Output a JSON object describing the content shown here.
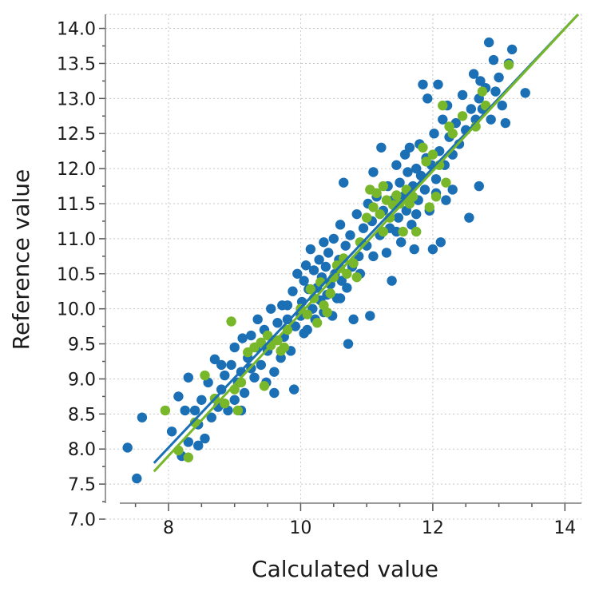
{
  "chart_data": {
    "type": "scatter",
    "title": "",
    "xlabel": "Calculated value",
    "ylabel": "Reference value",
    "xlim": [
      6.9,
      14.25
    ],
    "ylim": [
      7.0,
      14.2
    ],
    "x_ticks": [
      8,
      10,
      12,
      14
    ],
    "y_ticks": [
      7.0,
      7.5,
      8.0,
      8.5,
      9.0,
      9.5,
      10.0,
      10.5,
      11.0,
      11.5,
      12.0,
      12.5,
      13.0,
      13.5,
      14.0
    ],
    "x_ticklabels": [
      "8",
      "10",
      "12",
      "14"
    ],
    "y_ticklabels": [
      "7.0",
      "7.5",
      "8.0",
      "8.5",
      "9.0",
      "9.5",
      "10.0",
      "10.5",
      "11.0",
      "11.5",
      "12.0",
      "12.5",
      "13.0",
      "13.5",
      "14.0"
    ],
    "grid": true,
    "series": [
      {
        "color": "#1a6fb5",
        "points": [
          [
            7.38,
            8.02
          ],
          [
            7.52,
            7.58
          ],
          [
            7.6,
            8.45
          ],
          [
            8.05,
            8.25
          ],
          [
            8.15,
            8.75
          ],
          [
            8.2,
            7.9
          ],
          [
            8.3,
            8.1
          ],
          [
            8.3,
            9.02
          ],
          [
            8.4,
            8.55
          ],
          [
            8.45,
            8.35
          ],
          [
            8.5,
            8.7
          ],
          [
            8.55,
            8.15
          ],
          [
            8.6,
            8.95
          ],
          [
            8.65,
            8.45
          ],
          [
            8.7,
            9.28
          ],
          [
            8.75,
            8.6
          ],
          [
            8.8,
            8.85
          ],
          [
            8.85,
            9.05
          ],
          [
            8.9,
            8.55
          ],
          [
            8.95,
            9.2
          ],
          [
            9.0,
            8.7
          ],
          [
            9.0,
            9.45
          ],
          [
            9.05,
            8.95
          ],
          [
            9.1,
            9.1
          ],
          [
            9.12,
            9.58
          ],
          [
            9.15,
            8.8
          ],
          [
            9.2,
            9.3
          ],
          [
            9.25,
            9.62
          ],
          [
            9.3,
            9.02
          ],
          [
            9.32,
            9.45
          ],
          [
            9.35,
            9.85
          ],
          [
            9.4,
            9.2
          ],
          [
            9.45,
            9.7
          ],
          [
            9.48,
            8.95
          ],
          [
            9.5,
            9.4
          ],
          [
            9.55,
            10.0
          ],
          [
            9.58,
            9.55
          ],
          [
            9.6,
            9.1
          ],
          [
            9.65,
            9.8
          ],
          [
            9.7,
            9.3
          ],
          [
            9.72,
            10.05
          ],
          [
            9.75,
            9.6
          ],
          [
            9.8,
            9.85
          ],
          [
            9.85,
            9.4
          ],
          [
            9.88,
            10.25
          ],
          [
            9.9,
            8.85
          ],
          [
            9.92,
            9.75
          ],
          [
            9.95,
            10.5
          ],
          [
            10.0,
            9.9
          ],
          [
            10.02,
            10.1
          ],
          [
            10.05,
            10.4
          ],
          [
            10.08,
            10.62
          ],
          [
            10.1,
            9.7
          ],
          [
            10.12,
            10.28
          ],
          [
            10.15,
            10.85
          ],
          [
            10.18,
            10.0
          ],
          [
            10.2,
            10.55
          ],
          [
            10.22,
            9.85
          ],
          [
            10.25,
            10.3
          ],
          [
            10.28,
            10.7
          ],
          [
            10.3,
            10.12
          ],
          [
            10.32,
            10.45
          ],
          [
            10.35,
            9.95
          ],
          [
            10.38,
            10.6
          ],
          [
            10.4,
            10.2
          ],
          [
            10.42,
            10.8
          ],
          [
            10.45,
            10.35
          ],
          [
            10.48,
            9.9
          ],
          [
            10.5,
            11.0
          ],
          [
            10.52,
            10.5
          ],
          [
            10.55,
            10.15
          ],
          [
            10.58,
            10.7
          ],
          [
            10.6,
            11.2
          ],
          [
            10.62,
            10.4
          ],
          [
            10.65,
            11.8
          ],
          [
            10.68,
            10.9
          ],
          [
            10.7,
            10.3
          ],
          [
            10.72,
            9.5
          ],
          [
            10.75,
            11.05
          ],
          [
            10.78,
            10.6
          ],
          [
            10.8,
            9.85
          ],
          [
            10.85,
            11.35
          ],
          [
            10.88,
            10.75
          ],
          [
            10.9,
            10.5
          ],
          [
            10.95,
            11.15
          ],
          [
            11.0,
            10.9
          ],
          [
            11.02,
            11.5
          ],
          [
            11.05,
            9.9
          ],
          [
            11.08,
            11.25
          ],
          [
            11.1,
            10.75
          ],
          [
            11.15,
            11.6
          ],
          [
            11.2,
            11.05
          ],
          [
            11.22,
            12.3
          ],
          [
            11.25,
            11.4
          ],
          [
            11.3,
            10.8
          ],
          [
            11.32,
            11.75
          ],
          [
            11.35,
            11.15
          ],
          [
            11.38,
            10.4
          ],
          [
            11.4,
            11.55
          ],
          [
            11.45,
            12.05
          ],
          [
            11.48,
            11.3
          ],
          [
            11.5,
            11.8
          ],
          [
            11.52,
            10.95
          ],
          [
            11.55,
            11.6
          ],
          [
            11.58,
            12.2
          ],
          [
            11.6,
            11.4
          ],
          [
            11.62,
            11.95
          ],
          [
            11.65,
            12.3
          ],
          [
            11.68,
            11.2
          ],
          [
            11.7,
            11.75
          ],
          [
            11.72,
            10.85
          ],
          [
            11.75,
            12.0
          ],
          [
            11.78,
            11.55
          ],
          [
            11.8,
            12.35
          ],
          [
            11.82,
            11.9
          ],
          [
            11.85,
            13.2
          ],
          [
            11.88,
            11.7
          ],
          [
            11.9,
            12.15
          ],
          [
            11.92,
            13.0
          ],
          [
            11.95,
            11.4
          ],
          [
            11.98,
            12.05
          ],
          [
            12.0,
            10.85
          ],
          [
            12.02,
            12.5
          ],
          [
            12.05,
            11.85
          ],
          [
            12.08,
            13.2
          ],
          [
            12.1,
            12.25
          ],
          [
            12.12,
            10.95
          ],
          [
            12.15,
            12.7
          ],
          [
            12.18,
            12.05
          ],
          [
            12.2,
            11.55
          ],
          [
            12.22,
            12.9
          ],
          [
            12.25,
            12.45
          ],
          [
            12.3,
            12.2
          ],
          [
            12.35,
            12.65
          ],
          [
            12.4,
            12.35
          ],
          [
            12.45,
            13.05
          ],
          [
            12.5,
            12.55
          ],
          [
            12.55,
            11.3
          ],
          [
            12.58,
            12.85
          ],
          [
            12.62,
            13.35
          ],
          [
            12.65,
            12.7
          ],
          [
            12.7,
            13.0
          ],
          [
            12.72,
            13.25
          ],
          [
            12.75,
            12.85
          ],
          [
            12.8,
            13.15
          ],
          [
            12.85,
            13.8
          ],
          [
            12.88,
            12.7
          ],
          [
            12.92,
            13.55
          ],
          [
            12.95,
            13.1
          ],
          [
            13.0,
            13.3
          ],
          [
            13.05,
            12.9
          ],
          [
            13.1,
            12.65
          ],
          [
            13.15,
            13.5
          ],
          [
            13.2,
            13.7
          ],
          [
            13.4,
            13.08
          ],
          [
            12.7,
            11.75
          ],
          [
            9.1,
            8.55
          ],
          [
            8.25,
            8.55
          ],
          [
            8.45,
            8.05
          ],
          [
            9.6,
            8.8
          ],
          [
            10.35,
            10.95
          ],
          [
            9.8,
            10.05
          ],
          [
            11.1,
            11.95
          ],
          [
            12.3,
            11.7
          ],
          [
            11.45,
            11.1
          ],
          [
            9.25,
            9.15
          ],
          [
            8.8,
            9.2
          ],
          [
            10.6,
            10.15
          ],
          [
            11.75,
            11.35
          ],
          [
            12.05,
            11.65
          ],
          [
            10.05,
            9.65
          ]
        ]
      },
      {
        "color": "#77b729",
        "points": [
          [
            7.95,
            8.55
          ],
          [
            8.15,
            7.98
          ],
          [
            8.3,
            7.88
          ],
          [
            8.4,
            8.38
          ],
          [
            8.55,
            9.05
          ],
          [
            8.7,
            8.72
          ],
          [
            8.85,
            8.65
          ],
          [
            8.95,
            9.82
          ],
          [
            9.0,
            8.85
          ],
          [
            9.05,
            8.55
          ],
          [
            9.1,
            8.95
          ],
          [
            9.2,
            9.38
          ],
          [
            9.3,
            9.45
          ],
          [
            9.4,
            9.52
          ],
          [
            9.45,
            8.9
          ],
          [
            9.5,
            9.62
          ],
          [
            9.55,
            9.48
          ],
          [
            9.65,
            9.55
          ],
          [
            9.7,
            9.4
          ],
          [
            9.8,
            9.7
          ],
          [
            10.0,
            10.0
          ],
          [
            10.1,
            9.92
          ],
          [
            10.15,
            10.28
          ],
          [
            10.2,
            10.15
          ],
          [
            10.25,
            9.8
          ],
          [
            10.3,
            10.38
          ],
          [
            10.4,
            9.95
          ],
          [
            10.45,
            10.22
          ],
          [
            10.5,
            10.45
          ],
          [
            10.55,
            10.62
          ],
          [
            10.6,
            10.58
          ],
          [
            10.65,
            10.72
          ],
          [
            10.7,
            10.5
          ],
          [
            10.8,
            10.65
          ],
          [
            10.85,
            10.45
          ],
          [
            10.9,
            10.95
          ],
          [
            11.0,
            11.3
          ],
          [
            11.05,
            11.7
          ],
          [
            11.1,
            11.45
          ],
          [
            11.15,
            11.65
          ],
          [
            11.2,
            11.35
          ],
          [
            11.25,
            11.1
          ],
          [
            11.3,
            11.55
          ],
          [
            11.35,
            11.3
          ],
          [
            11.4,
            11.48
          ],
          [
            11.45,
            11.62
          ],
          [
            11.5,
            11.5
          ],
          [
            11.55,
            11.1
          ],
          [
            11.6,
            11.7
          ],
          [
            11.65,
            11.5
          ],
          [
            11.7,
            11.6
          ],
          [
            11.75,
            11.1
          ],
          [
            11.85,
            12.3
          ],
          [
            11.9,
            12.1
          ],
          [
            11.95,
            11.45
          ],
          [
            12.0,
            12.2
          ],
          [
            12.05,
            11.6
          ],
          [
            12.1,
            12.05
          ],
          [
            12.15,
            12.9
          ],
          [
            12.2,
            11.8
          ],
          [
            12.25,
            12.6
          ],
          [
            12.3,
            12.5
          ],
          [
            12.45,
            12.75
          ],
          [
            12.65,
            12.6
          ],
          [
            12.75,
            13.1
          ],
          [
            12.8,
            12.9
          ],
          [
            13.15,
            13.48
          ],
          [
            9.75,
            9.45
          ],
          [
            10.35,
            10.05
          ],
          [
            11.25,
            11.75
          ]
        ]
      }
    ],
    "fit_lines": [
      {
        "color": "#1a6fb5",
        "x": [
          7.78,
          14.2
        ],
        "y": [
          7.8,
          14.2
        ]
      },
      {
        "color": "#77b729",
        "x": [
          7.78,
          14.2
        ],
        "y": [
          7.68,
          14.2
        ]
      }
    ]
  }
}
